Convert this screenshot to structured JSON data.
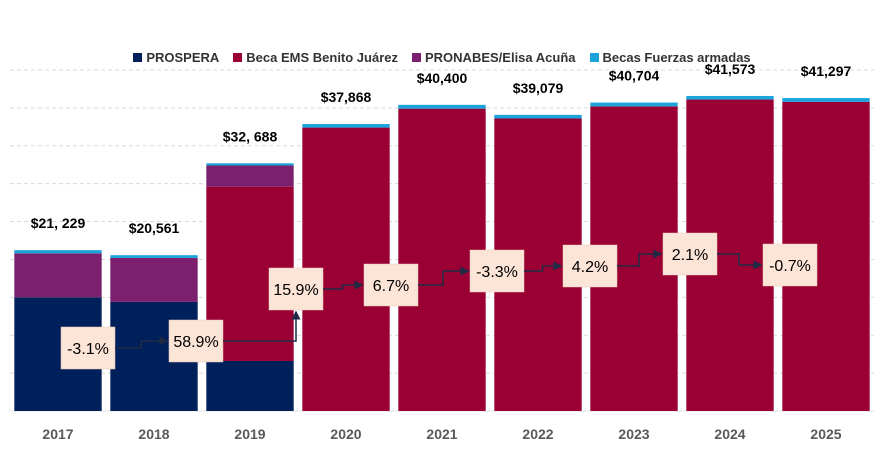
{
  "chart_data": {
    "type": "bar",
    "stacked": true,
    "title": "",
    "xlabel": "",
    "ylabel": "",
    "ylim": [
      0,
      45000
    ],
    "grid": true,
    "legend_position": "top",
    "categories": [
      "2017",
      "2018",
      "2019",
      "2020",
      "2021",
      "2022",
      "2023",
      "2024",
      "2025"
    ],
    "series": [
      {
        "name": "PROSPERA",
        "color": "#00205B",
        "values": [
          15000,
          14400,
          6600,
          0,
          0,
          0,
          0,
          0,
          0
        ]
      },
      {
        "name": "Beca EMS Benito Juárez",
        "color": "#9B0035",
        "values": [
          0,
          0,
          23000,
          37400,
          39900,
          38600,
          40200,
          41100,
          40800
        ]
      },
      {
        "name": "PRONABES/Elisa Acuña",
        "color": "#7B1F6E",
        "values": [
          5800,
          5800,
          2800,
          0,
          0,
          0,
          0,
          0,
          0
        ]
      },
      {
        "name": "Becas Fuerzas armadas",
        "color": "#1BA3DB",
        "values": [
          429,
          361,
          288,
          468,
          500,
          479,
          504,
          473,
          497
        ]
      }
    ],
    "total_labels": [
      "$21, 229",
      "$20,561",
      "$32, 688",
      "$37,868",
      "$40,400",
      "$39,079",
      "$40,704",
      "$41,573",
      "$41,297"
    ],
    "growth_labels": [
      "-3.1%",
      "58.9%",
      "15.9%",
      "6.7%",
      "-3.3%",
      "4.2%",
      "2.1%",
      "-0.7%"
    ]
  }
}
